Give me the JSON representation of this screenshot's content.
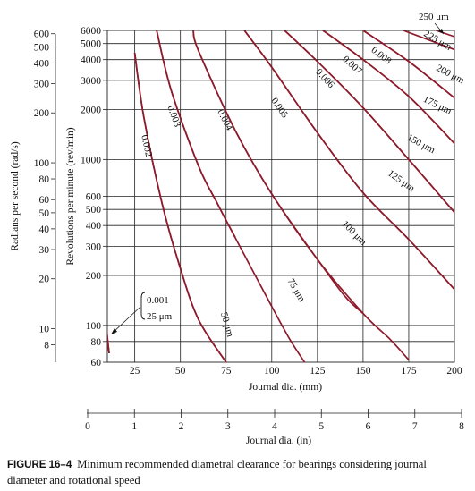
{
  "chart_data": {
    "type": "line",
    "x_axis": {
      "label": "Journal dia. (mm)",
      "range": [
        10,
        200
      ],
      "ticks": [
        25,
        50,
        75,
        100,
        125,
        150,
        175,
        200
      ]
    },
    "x2_axis": {
      "label": "Journal dia. (in)",
      "range": [
        0,
        8
      ],
      "ticks": [
        0,
        1,
        2,
        3,
        4,
        5,
        6,
        7,
        8
      ]
    },
    "y_axis": {
      "label": "Revolutions per minute (rev/min)",
      "scale": "log",
      "range": [
        60,
        6000
      ],
      "ticks": [
        60,
        80,
        100,
        200,
        300,
        400,
        500,
        600,
        1000,
        2000,
        3000,
        4000,
        5000,
        6000
      ]
    },
    "y2_axis": {
      "label": "Radians per second (rad/s)",
      "scale": "log",
      "ticks": [
        8,
        10,
        20,
        30,
        40,
        50,
        60,
        80,
        100,
        200,
        300,
        400,
        500,
        600
      ]
    },
    "grid": true,
    "series": [
      {
        "name": "0.001 / 25 μm",
        "mm_coeff": 0.001,
        "points": [
          [
            8.5,
            130
          ],
          [
            10,
            85
          ],
          [
            11,
            68
          ]
        ]
      },
      {
        "name": "0.002",
        "mm_coeff": 0.002,
        "points": [
          [
            25,
            4400
          ],
          [
            30,
            1800
          ],
          [
            40,
            540
          ],
          [
            50,
            220
          ],
          [
            60,
            108
          ],
          [
            75,
            60
          ]
        ]
      },
      {
        "name": "0.003",
        "mm_coeff": 0.003,
        "points": [
          [
            37,
            6000
          ],
          [
            45,
            2600
          ],
          [
            60,
            910
          ],
          [
            70,
            550
          ],
          [
            75,
            430
          ],
          [
            80,
            340
          ]
        ]
      },
      {
        "name": "0.004",
        "mm_coeff": 0.004,
        "points": [
          [
            57,
            6000
          ],
          [
            60,
            4500
          ],
          [
            80,
            1500
          ],
          [
            100,
            620
          ],
          [
            125,
            250
          ],
          [
            140,
            150
          ],
          [
            150,
            118
          ]
        ]
      },
      {
        "name": "0.005",
        "mm_coeff": 0.005,
        "points": [
          [
            85,
            6000
          ],
          [
            100,
            3600
          ],
          [
            125,
            1450
          ],
          [
            150,
            630
          ],
          [
            175,
            330
          ],
          [
            200,
            165
          ]
        ]
      },
      {
        "name": "0.006",
        "mm_coeff": 0.006,
        "points": [
          [
            107,
            6000
          ],
          [
            125,
            3900
          ],
          [
            150,
            2050
          ],
          [
            175,
            1000
          ],
          [
            200,
            480
          ]
        ]
      },
      {
        "name": "0.007",
        "mm_coeff": 0.007,
        "points": [
          [
            128,
            6000
          ],
          [
            150,
            4000
          ],
          [
            175,
            2400
          ],
          [
            200,
            1250
          ]
        ]
      },
      {
        "name": "0.008",
        "mm_coeff": 0.008,
        "points": [
          [
            150,
            6000
          ],
          [
            175,
            3900
          ],
          [
            200,
            2350
          ]
        ]
      },
      {
        "name": "25 μm",
        "um": 25,
        "points": [
          [
            8.5,
            130
          ],
          [
            10,
            85
          ],
          [
            11,
            68
          ]
        ]
      },
      {
        "name": "50 μm",
        "um": 50,
        "points": [
          [
            25,
            4400
          ],
          [
            30,
            1800
          ],
          [
            40,
            540
          ],
          [
            50,
            220
          ],
          [
            60,
            108
          ],
          [
            75,
            60
          ]
        ]
      },
      {
        "name": "75 μm",
        "um": 75,
        "points": [
          [
            37,
            6000
          ],
          [
            45,
            2600
          ],
          [
            60,
            910
          ],
          [
            70,
            550
          ],
          [
            75,
            430
          ],
          [
            100,
            130
          ],
          [
            110,
            82
          ],
          [
            118,
            60
          ]
        ]
      },
      {
        "name": "100 μm",
        "um": 100,
        "points": [
          [
            57,
            6000
          ],
          [
            60,
            4500
          ],
          [
            80,
            1500
          ],
          [
            100,
            620
          ],
          [
            125,
            250
          ],
          [
            150,
            118
          ],
          [
            165,
            82
          ],
          [
            175,
            62
          ]
        ]
      },
      {
        "name": "125 μm",
        "um": 125,
        "points": [
          [
            85,
            6000
          ],
          [
            100,
            3600
          ],
          [
            125,
            1450
          ],
          [
            150,
            630
          ],
          [
            175,
            330
          ],
          [
            200,
            165
          ]
        ]
      },
      {
        "name": "150 μm",
        "um": 150,
        "points": [
          [
            107,
            6000
          ],
          [
            125,
            3900
          ],
          [
            150,
            2050
          ],
          [
            175,
            1000
          ],
          [
            200,
            480
          ]
        ]
      },
      {
        "name": "175 μm",
        "um": 175,
        "points": [
          [
            128,
            6000
          ],
          [
            150,
            4000
          ],
          [
            175,
            2400
          ],
          [
            200,
            1250
          ]
        ]
      },
      {
        "name": "200 μm",
        "um": 200,
        "points": [
          [
            150,
            6000
          ],
          [
            175,
            3900
          ],
          [
            200,
            2350
          ]
        ]
      },
      {
        "name": "225 μm",
        "um": 225,
        "points": [
          [
            172,
            6000
          ],
          [
            200,
            4600
          ]
        ]
      },
      {
        "name": "250 μm",
        "um": 250,
        "points": [
          [
            190,
            6000
          ],
          [
            200,
            5500
          ]
        ]
      }
    ],
    "labels": {
      "mm_coeff": [
        "0.002",
        "0.003",
        "0.004",
        "0.005",
        "0.006",
        "0.007",
        "0.008"
      ],
      "um": [
        "50 μm",
        "75 μm",
        "100 μm",
        "125 μm",
        "150 μm",
        "175 μm",
        "200 μm",
        "225 μm",
        "250 μm"
      ],
      "small_bracket": [
        "0.001",
        "25 μm"
      ]
    }
  },
  "caption": {
    "figure": "FIGURE 16–4",
    "text": "Minimum recommended diametral clearance for bearings considering journal diameter and rotational speed"
  }
}
